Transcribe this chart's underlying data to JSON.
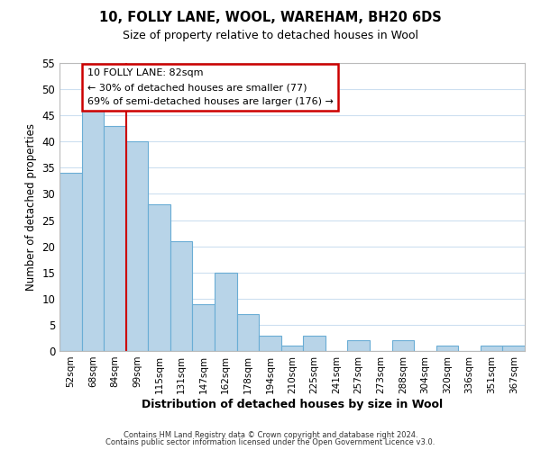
{
  "title1": "10, FOLLY LANE, WOOL, WAREHAM, BH20 6DS",
  "title2": "Size of property relative to detached houses in Wool",
  "xlabel": "Distribution of detached houses by size in Wool",
  "ylabel": "Number of detached properties",
  "bar_color": "#b8d4e8",
  "bar_edge_color": "#6aadd5",
  "marker_line_color": "#cc0000",
  "categories": [
    "52sqm",
    "68sqm",
    "84sqm",
    "99sqm",
    "115sqm",
    "131sqm",
    "147sqm",
    "162sqm",
    "178sqm",
    "194sqm",
    "210sqm",
    "225sqm",
    "241sqm",
    "257sqm",
    "273sqm",
    "288sqm",
    "304sqm",
    "320sqm",
    "336sqm",
    "351sqm",
    "367sqm"
  ],
  "values": [
    34,
    46,
    43,
    40,
    28,
    21,
    9,
    15,
    7,
    3,
    1,
    3,
    0,
    2,
    0,
    2,
    0,
    1,
    0,
    1,
    1
  ],
  "ylim": [
    0,
    55
  ],
  "yticks": [
    0,
    5,
    10,
    15,
    20,
    25,
    30,
    35,
    40,
    45,
    50,
    55
  ],
  "marker_bar_index": 2,
  "annotation_title": "10 FOLLY LANE: 82sqm",
  "annotation_line1": "← 30% of detached houses are smaller (77)",
  "annotation_line2": "69% of semi-detached houses are larger (176) →",
  "footer1": "Contains HM Land Registry data © Crown copyright and database right 2024.",
  "footer2": "Contains public sector information licensed under the Open Government Licence v3.0.",
  "background_color": "#ffffff",
  "grid_color": "#cddff0"
}
